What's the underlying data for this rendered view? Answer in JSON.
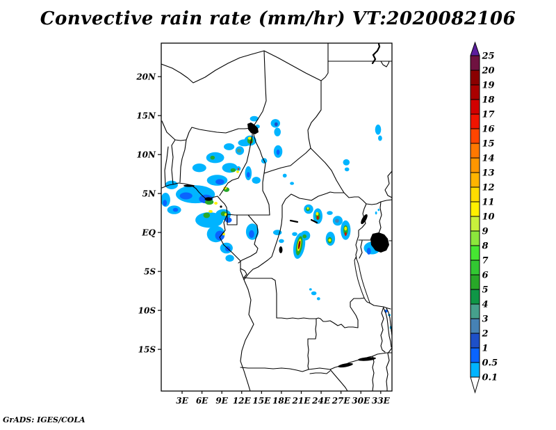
{
  "page": {
    "background": "#FFFFFF"
  },
  "header": {
    "title": "Convective rain rate (mm/hr) VT:2020082106"
  },
  "footer": {
    "credit": "GrADS: IGES/COLA"
  },
  "axes": {
    "lat_ticks": [
      {
        "label": "20N",
        "value": 20
      },
      {
        "label": "15N",
        "value": 15
      },
      {
        "label": "10N",
        "value": 10
      },
      {
        "label": "5N",
        "value": 5
      },
      {
        "label": "EQ",
        "value": 0
      },
      {
        "label": "5S",
        "value": -5
      },
      {
        "label": "10S",
        "value": -10
      },
      {
        "label": "15S",
        "value": -15
      }
    ],
    "lon_ticks": [
      {
        "label": "3E",
        "value": 3
      },
      {
        "label": "6E",
        "value": 6
      },
      {
        "label": "9E",
        "value": 9
      },
      {
        "label": "12E",
        "value": 12
      },
      {
        "label": "15E",
        "value": 15
      },
      {
        "label": "18E",
        "value": 18
      },
      {
        "label": "21E",
        "value": 21
      },
      {
        "label": "24E",
        "value": 24
      },
      {
        "label": "27E",
        "value": 27
      },
      {
        "label": "30E",
        "value": 30
      },
      {
        "label": "33E",
        "value": 33
      }
    ]
  },
  "colorbar": {
    "labels": [
      "0.1",
      "0.5",
      "1",
      "2",
      "3",
      "4",
      "5",
      "6",
      "7",
      "8",
      "9",
      "10",
      "11",
      "12",
      "13",
      "14",
      "15",
      "16",
      "17",
      "18",
      "19",
      "20",
      "25"
    ],
    "above_color": "#5C1E9E",
    "below_color": "#FFFFFF"
  },
  "chart_data": {
    "type": "heatmap",
    "title": "Convective rain rate (mm/hr) VT:2020082106",
    "variable": "Convective rain rate",
    "units": "mm/hr",
    "valid_time": "2020082106",
    "lon_range": [
      -0.15,
      34.7
    ],
    "lat_range": [
      -20.35,
      24.3
    ],
    "grid": false,
    "legend_position": "right",
    "levels": [
      0.1,
      0.5,
      1,
      2,
      3,
      4,
      5,
      6,
      7,
      8,
      9,
      10,
      11,
      12,
      13,
      14,
      15,
      16,
      17,
      18,
      19,
      20,
      25
    ],
    "palette": [
      "#00B4FF",
      "#0A64FF",
      "#1E50C8",
      "#4682B4",
      "#46A08C",
      "#0F9646",
      "#28A828",
      "#32C832",
      "#46E632",
      "#8CE63C",
      "#C8F03C",
      "#FFF000",
      "#FFDC00",
      "#FFB400",
      "#FF9600",
      "#FF7800",
      "#FF4500",
      "#F01400",
      "#D20000",
      "#AA0000",
      "#8B0000",
      "#6F1240"
    ],
    "cell_format": [
      "lon_deg_E",
      "lat_deg_N",
      "width_deg",
      "height_deg",
      "rain_mm_hr",
      "rotation_deg_optional"
    ],
    "rain_cells": [
      [
        13.3,
        11.8,
        1.8,
        1.3,
        0.1
      ],
      [
        13.9,
        14.6,
        1.3,
        0.7,
        0.1
      ],
      [
        14.4,
        13.6,
        0.7,
        0.5,
        0.1
      ],
      [
        17.1,
        14.0,
        1.4,
        1.1,
        0.1
      ],
      [
        17.4,
        12.9,
        1.0,
        1.1,
        0.1
      ],
      [
        17.5,
        10.4,
        1.3,
        1.6,
        0.1
      ],
      [
        11.7,
        10.5,
        1.3,
        1.1,
        0.1
      ],
      [
        11.5,
        8.2,
        0.7,
        0.6,
        0.1
      ],
      [
        32.6,
        13.2,
        0.9,
        1.3,
        0.1
      ],
      [
        32.9,
        12.1,
        0.6,
        0.7,
        0.1
      ],
      [
        27.8,
        9.0,
        1.0,
        0.8,
        0.1
      ],
      [
        27.9,
        8.1,
        0.7,
        0.5,
        0.1
      ],
      [
        8.0,
        9.6,
        2.7,
        1.4,
        0.1
      ],
      [
        10.1,
        11.0,
        1.6,
        0.9,
        0.1
      ],
      [
        12.4,
        11.5,
        1.9,
        0.9,
        0.1
      ],
      [
        5.6,
        8.3,
        2.1,
        1.1,
        0.1
      ],
      [
        10.2,
        8.3,
        2.3,
        1.25,
        0.1
      ],
      [
        8.3,
        6.7,
        3.1,
        1.4,
        0.1
      ],
      [
        13.0,
        7.6,
        1.0,
        1.8,
        0.1
      ],
      [
        14.2,
        6.7,
        1.3,
        0.9,
        0.1
      ],
      [
        15.4,
        9.2,
        0.9,
        0.7,
        0.1
      ],
      [
        5.0,
        4.9,
        5.9,
        2.3,
        0.1
      ],
      [
        1.4,
        6.1,
        1.9,
        1.1,
        0.1
      ],
      [
        0.5,
        4.2,
        1.4,
        1.8,
        0.1
      ],
      [
        1.8,
        2.9,
        2.1,
        1.1,
        0.1
      ],
      [
        9.2,
        2.3,
        2.3,
        1.4,
        0.1
      ],
      [
        7.1,
        1.6,
        4.2,
        2.0,
        0.1
      ],
      [
        8.1,
        -0.2,
        2.7,
        2.1,
        0.1
      ],
      [
        9.7,
        -2.0,
        1.9,
        1.4,
        0.1
      ],
      [
        10.2,
        -3.3,
        1.3,
        0.9,
        0.1
      ],
      [
        13.6,
        0.1,
        1.9,
        2.1,
        0.1
      ],
      [
        17.4,
        0.0,
        1.3,
        0.7,
        0.1
      ],
      [
        18.0,
        -1.1,
        0.8,
        0.5,
        0.1
      ],
      [
        19.6,
        6.3,
        0.6,
        0.4,
        0.1
      ],
      [
        18.5,
        7.3,
        0.6,
        0.5,
        0.1
      ],
      [
        22.1,
        3.0,
        1.4,
        1.2,
        0.1
      ],
      [
        23.5,
        2.1,
        1.4,
        2.0,
        0.1
      ],
      [
        25.3,
        2.5,
        0.9,
        0.5,
        0.1
      ],
      [
        26.5,
        1.5,
        1.5,
        1.25,
        0.1
      ],
      [
        27.7,
        0.3,
        1.5,
        2.5,
        0.1
      ],
      [
        25.4,
        -0.8,
        1.4,
        1.8,
        0.1
      ],
      [
        21.6,
        -0.4,
        1.5,
        1.25,
        0.1
      ],
      [
        20.7,
        -1.7,
        1.7,
        3.4,
        0.1,
        10
      ],
      [
        20.0,
        -0.2,
        0.8,
        0.5,
        0.1
      ],
      [
        31.7,
        -2.0,
        2.5,
        1.6,
        0.1
      ],
      [
        32.7,
        2.9,
        0.3,
        0.3,
        0.1
      ],
      [
        32.3,
        2.5,
        0.3,
        0.4,
        0.1
      ],
      [
        22.9,
        -7.8,
        0.8,
        0.5,
        0.1
      ],
      [
        23.6,
        -8.5,
        0.5,
        0.4,
        0.1
      ],
      [
        22.4,
        -7.3,
        0.4,
        0.3,
        0.1
      ],
      [
        34.3,
        -10.6,
        0.4,
        0.3,
        0.1
      ],
      [
        34.5,
        -12.2,
        0.3,
        0.4,
        0.1
      ],
      [
        17.2,
        13.9,
        0.5,
        0.5,
        1
      ],
      [
        17.5,
        10.3,
        0.5,
        0.7,
        0.5
      ],
      [
        11.6,
        10.5,
        0.6,
        0.5,
        3
      ],
      [
        8.7,
        6.5,
        1.3,
        0.7,
        0.5
      ],
      [
        13.0,
        7.4,
        0.5,
        0.7,
        0.5
      ],
      [
        3.6,
        4.7,
        1.9,
        0.9,
        0.5
      ],
      [
        6.6,
        4.3,
        2.1,
        1.1,
        0.5
      ],
      [
        0.4,
        3.8,
        0.6,
        0.8,
        0.5
      ],
      [
        2.0,
        2.9,
        0.8,
        0.5,
        0.5
      ],
      [
        10.0,
        1.6,
        1.0,
        0.7,
        0.5
      ],
      [
        8.7,
        -0.4,
        1.4,
        1.25,
        0.5
      ],
      [
        9.9,
        -2.1,
        0.8,
        0.7,
        0.5
      ],
      [
        13.5,
        -0.2,
        0.8,
        1.0,
        0.5
      ],
      [
        32.1,
        -1.6,
        1.0,
        0.7,
        0.5
      ],
      [
        31.2,
        -2.4,
        0.6,
        0.9,
        0.5
      ],
      [
        33.8,
        -10.1,
        0.5,
        0.4,
        0.5
      ],
      [
        26.4,
        1.5,
        0.6,
        0.5,
        2
      ],
      [
        13.3,
        11.8,
        0.9,
        0.9,
        5
      ],
      [
        7.6,
        9.6,
        0.7,
        0.5,
        5
      ],
      [
        10.7,
        8.0,
        0.8,
        0.5,
        5
      ],
      [
        7.1,
        3.9,
        1.3,
        0.7,
        5
      ],
      [
        9.7,
        5.5,
        0.9,
        0.6,
        5
      ],
      [
        9.3,
        2.4,
        0.9,
        0.6,
        5
      ],
      [
        6.7,
        2.2,
        1.0,
        0.7,
        5
      ],
      [
        22.0,
        3.0,
        0.6,
        0.5,
        5
      ],
      [
        23.5,
        2.1,
        0.7,
        1.0,
        5
      ],
      [
        27.7,
        0.3,
        0.7,
        1.25,
        5
      ],
      [
        25.3,
        -1.0,
        0.7,
        0.8,
        5
      ],
      [
        21.5,
        -0.5,
        0.6,
        0.5,
        5
      ],
      [
        20.7,
        -1.7,
        0.9,
        2.5,
        5,
        10
      ],
      [
        13.2,
        12.1,
        0.5,
        0.35,
        10
      ],
      [
        11.4,
        7.8,
        0.4,
        0.35,
        10
      ],
      [
        9.5,
        5.7,
        0.5,
        0.35,
        10
      ],
      [
        8.1,
        3.75,
        0.5,
        0.35,
        10
      ],
      [
        9.6,
        2.3,
        0.4,
        0.35,
        10
      ],
      [
        7.3,
        2.7,
        0.6,
        0.35,
        10
      ],
      [
        9.3,
        -0.2,
        0.4,
        0.35,
        10
      ],
      [
        22.0,
        3.1,
        0.3,
        0.3,
        10
      ],
      [
        23.4,
        2.4,
        0.4,
        0.45,
        10
      ],
      [
        27.7,
        0.5,
        0.4,
        0.5,
        10
      ],
      [
        25.3,
        -1.0,
        0.4,
        0.35,
        10
      ],
      [
        20.7,
        -1.6,
        0.5,
        1.6,
        10,
        10
      ],
      [
        13.4,
        11.6,
        0.3,
        0.27,
        17
      ],
      [
        11.5,
        8.15,
        0.25,
        0.2,
        16
      ],
      [
        23.5,
        1.9,
        0.3,
        0.5,
        17
      ],
      [
        27.7,
        -0.2,
        0.3,
        0.45,
        17
      ],
      [
        20.7,
        -1.6,
        0.3,
        1.1,
        19,
        10
      ]
    ]
  }
}
